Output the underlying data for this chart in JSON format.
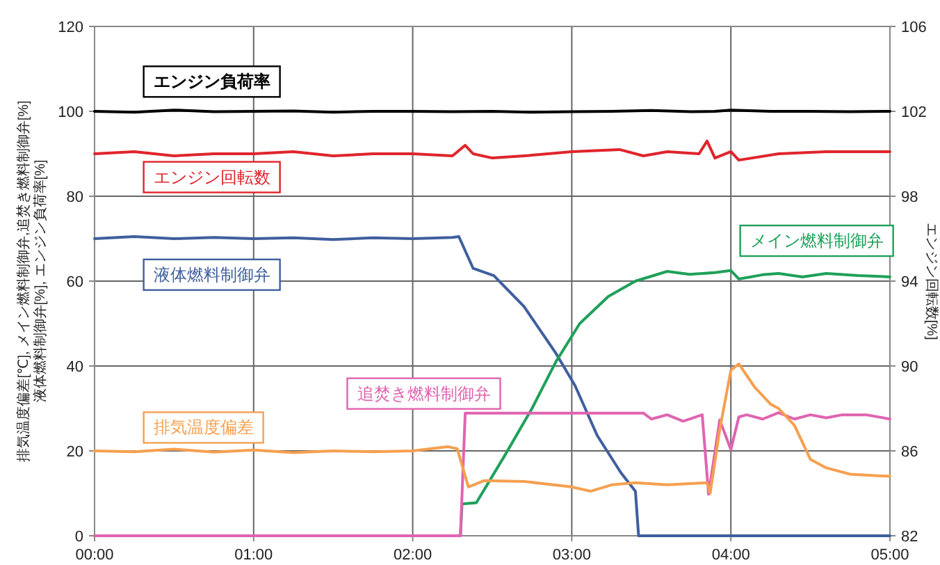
{
  "chart_data": {
    "type": "line",
    "ylabel": "排気温度偏差[℃], メイン燃料制御弁,追焚き燃料制御弁[%]\n液体燃料制御弁[%], エンジン負荷率[%]",
    "y2label": "エンジン回転数[%]",
    "xlim": [
      0,
      5
    ],
    "xticks": [
      {
        "value": 0,
        "label": "00:00"
      },
      {
        "value": 1,
        "label": "01:00"
      },
      {
        "value": 2,
        "label": "02:00"
      },
      {
        "value": 3,
        "label": "03:00"
      },
      {
        "value": 4,
        "label": "04:00"
      },
      {
        "value": 5,
        "label": "05:00"
      }
    ],
    "ylim": [
      0,
      120
    ],
    "yticks": [
      0,
      20,
      40,
      60,
      80,
      100,
      120
    ],
    "y2lim": [
      82,
      106
    ],
    "y2ticks": [
      82,
      86,
      90,
      94,
      98,
      102,
      106
    ],
    "grid": true,
    "marker": "none",
    "line_style": "solid",
    "series": [
      {
        "name": "エンジン負荷率",
        "color": "#000000",
        "x": [
          0,
          0.25,
          0.5,
          0.75,
          1,
          1.25,
          1.5,
          1.75,
          2,
          2.25,
          2.5,
          2.75,
          3,
          3.25,
          3.5,
          3.75,
          3.9,
          4,
          4.25,
          4.5,
          4.75,
          5
        ],
        "values": [
          100,
          99.8,
          100.3,
          99.9,
          100,
          100.1,
          99.8,
          100,
          100,
          99.9,
          100,
          99.8,
          99.9,
          100,
          100.2,
          99.9,
          100,
          100.3,
          100,
          100,
          99.9,
          100
        ]
      },
      {
        "name": "エンジン回転数",
        "color": "#e0242c",
        "axis": "y2",
        "x": [
          0,
          0.25,
          0.5,
          0.75,
          1,
          1.25,
          1.5,
          1.75,
          2,
          2.25,
          2.33,
          2.38,
          2.5,
          2.7,
          3,
          3.3,
          3.45,
          3.6,
          3.8,
          3.85,
          3.9,
          4,
          4.05,
          4.3,
          4.6,
          5
        ],
        "values": [
          100,
          100.1,
          99.9,
          100,
          100,
          100.1,
          99.9,
          100,
          100,
          99.9,
          100.4,
          100,
          99.8,
          99.9,
          100.1,
          100.2,
          99.9,
          100.1,
          100,
          100.6,
          99.8,
          100.1,
          99.7,
          100,
          100.1,
          100.1
        ]
      },
      {
        "name": "液体燃料制御弁",
        "color": "#3f5f9e",
        "x": [
          0,
          0.25,
          0.5,
          0.75,
          1,
          1.25,
          1.5,
          1.75,
          2,
          2.25,
          2.29,
          2.38,
          2.51,
          2.7,
          2.9,
          3.02,
          3.16,
          3.31,
          3.4,
          3.42,
          5
        ],
        "values": [
          70,
          70.5,
          70,
          70.3,
          70,
          70.2,
          69.8,
          70.2,
          70,
          70.3,
          70.5,
          63,
          61.3,
          54,
          43,
          35.4,
          23.6,
          14.8,
          10.5,
          0,
          0
        ]
      },
      {
        "name": "メイン燃料制御弁",
        "color": "#1fa05a",
        "x": [
          0,
          2.3,
          2.31,
          2.4,
          2.58,
          2.75,
          2.9,
          3.05,
          3.23,
          3.4,
          3.6,
          3.74,
          3.9,
          4,
          4.05,
          4.2,
          4.3,
          4.45,
          4.6,
          4.8,
          5
        ],
        "values": [
          0,
          0,
          7.5,
          7.8,
          19,
          30,
          41,
          50,
          56.4,
          60,
          62.3,
          61.6,
          62,
          62.5,
          60.5,
          61.5,
          61.8,
          61,
          61.8,
          61.3,
          61
        ]
      },
      {
        "name": "追焚き燃料制御弁",
        "color": "#e064b0",
        "x": [
          0,
          2.3,
          2.33,
          3.45,
          3.5,
          3.6,
          3.7,
          3.82,
          3.86,
          3.93,
          4,
          4.05,
          4.1,
          4.2,
          4.3,
          4.4,
          4.5,
          4.6,
          4.7,
          4.85,
          5
        ],
        "values": [
          0,
          0,
          28.9,
          28.9,
          27.5,
          28.5,
          27,
          28.5,
          9.8,
          27.3,
          20.3,
          28,
          28.5,
          27.5,
          29,
          27.5,
          28.5,
          27.8,
          28.5,
          28.5,
          27.5
        ]
      },
      {
        "name": "排気温度偏差",
        "color": "#f5a050",
        "x": [
          0,
          0.25,
          0.5,
          0.75,
          1,
          1.25,
          1.5,
          1.75,
          2,
          2.22,
          2.28,
          2.35,
          2.45,
          2.7,
          3,
          3.12,
          3.25,
          3.4,
          3.6,
          3.85,
          3.87,
          3.93,
          4,
          4.05,
          4.15,
          4.25,
          4.3,
          4.4,
          4.5,
          4.6,
          4.75,
          5
        ],
        "values": [
          20,
          19.8,
          20.4,
          19.7,
          20.2,
          19.6,
          20,
          19.8,
          20,
          21,
          20.5,
          11.5,
          13,
          12.8,
          11.5,
          10.5,
          12,
          12.5,
          12,
          12.5,
          10,
          25,
          39,
          40.5,
          35,
          31,
          30,
          26,
          18,
          16,
          14.5,
          14
        ]
      }
    ]
  }
}
